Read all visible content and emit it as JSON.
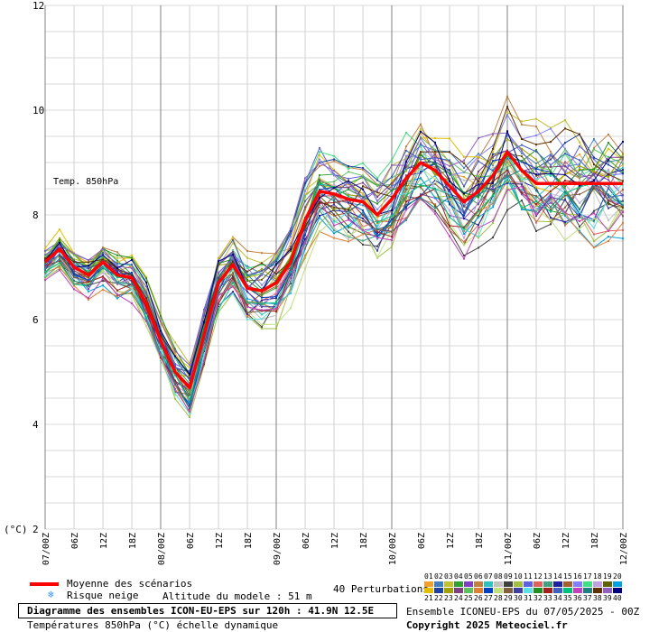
{
  "chart_data": {
    "type": "line",
    "panel_label": "Temp. 850hPa",
    "y_unit": "(°C)",
    "ylim": [
      2,
      12
    ],
    "yticks": [
      "2",
      "4",
      "6",
      "8",
      "10",
      "12"
    ],
    "grid": true,
    "x_ticks": [
      "07/00Z",
      "06Z",
      "12Z",
      "18Z",
      "08/00Z",
      "06Z",
      "12Z",
      "18Z",
      "09/00Z",
      "06Z",
      "12Z",
      "18Z",
      "10/00Z",
      "06Z",
      "12Z",
      "18Z",
      "11/00Z",
      "06Z",
      "12Z",
      "18Z",
      "12/00Z"
    ],
    "x_hours_start": 0,
    "x_hours_end": 120,
    "mean_series": {
      "name": "Moyenne des scénarios",
      "color": "#ff0000",
      "hours": [
        0,
        3,
        6,
        9,
        12,
        15,
        18,
        21,
        24,
        27,
        30,
        33,
        36,
        39,
        42,
        45,
        48,
        51,
        54,
        57,
        60,
        63,
        66,
        69,
        72,
        75,
        78,
        81,
        84,
        87,
        90,
        93,
        96,
        99,
        102,
        105,
        108,
        111,
        114,
        117,
        120
      ],
      "values": [
        7.1,
        7.35,
        7.0,
        6.85,
        7.1,
        6.85,
        6.8,
        6.3,
        5.6,
        5.0,
        4.7,
        5.7,
        6.7,
        7.05,
        6.6,
        6.55,
        6.7,
        7.1,
        7.9,
        8.45,
        8.4,
        8.3,
        8.25,
        8.0,
        8.3,
        8.7,
        9.0,
        8.85,
        8.55,
        8.25,
        8.45,
        8.75,
        9.2,
        8.85,
        8.6,
        8.6,
        8.6,
        8.6,
        8.6,
        8.6,
        8.6
      ]
    },
    "perturbations": {
      "count_label": "40 Perturbations",
      "members": [
        "01",
        "02",
        "03",
        "04",
        "05",
        "06",
        "07",
        "08",
        "09",
        "10",
        "11",
        "12",
        "13",
        "14",
        "15",
        "16",
        "17",
        "18",
        "19",
        "20",
        "21",
        "22",
        "23",
        "24",
        "25",
        "26",
        "27",
        "28",
        "29",
        "30",
        "31",
        "32",
        "33",
        "34",
        "35",
        "36",
        "37",
        "38",
        "39",
        "40"
      ],
      "colors": [
        "#f0a030",
        "#4080c0",
        "#c0c030",
        "#30a030",
        "#8040c0",
        "#c08040",
        "#30c0c0",
        "#c0c0c0",
        "#404040",
        "#a0c040",
        "#6060e0",
        "#e06060",
        "#40a080",
        "#2020a0",
        "#a06030",
        "#8080ff",
        "#40e080",
        "#c0a0e0",
        "#606000",
        "#00a0e0",
        "#e0c000",
        "#2040a0",
        "#a0a000",
        "#804080",
        "#60c060",
        "#e08030",
        "#0040c0",
        "#c0e080",
        "#806040",
        "#4040a0",
        "#60e0e0",
        "#209020",
        "#a02020",
        "#4060c0",
        "#00c080",
        "#c040c0",
        "#208080",
        "#603000",
        "#9060c0",
        "#000080"
      ]
    },
    "snow_risk_label": "Risque neige",
    "altitude_label": "Altitude du modele : 51 m"
  },
  "footer": {
    "title": "Diagramme des ensembles ICON-EU-EPS sur 120h : 41.9N 12.5E",
    "subtitle": "Températures 850hPa (°C) échelle dynamique",
    "run_info": "Ensemble ICONEU-EPS du 07/05/2025 - 00Z",
    "copyright": "Copyright 2025 Meteociel.fr",
    "colors": {
      "mean_line": "#ff0000",
      "snow_icon": "#3399ff"
    }
  }
}
